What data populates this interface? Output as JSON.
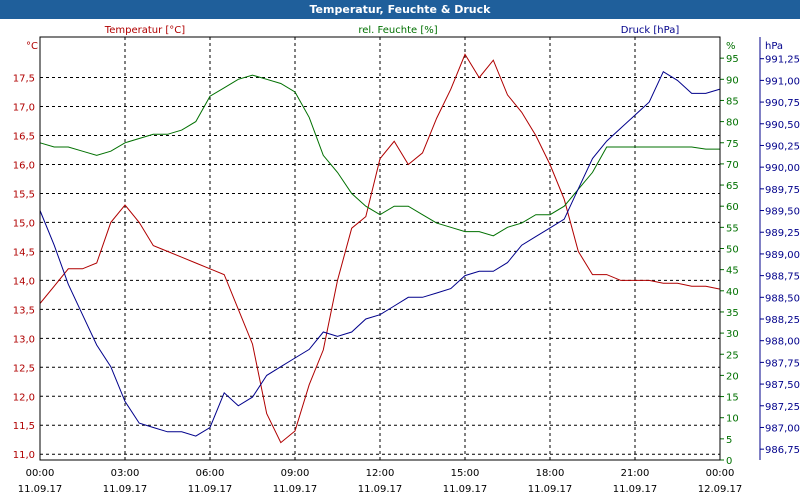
{
  "window": {
    "title": "Temperatur, Feuchte & Druck"
  },
  "chart_data": {
    "type": "line",
    "title": "Temperatur, Feuchte & Druck",
    "x_ticks": [
      {
        "time": "00:00",
        "date": "11.09.17"
      },
      {
        "time": "03:00",
        "date": "11.09.17"
      },
      {
        "time": "06:00",
        "date": "11.09.17"
      },
      {
        "time": "09:00",
        "date": "11.09.17"
      },
      {
        "time": "12:00",
        "date": "11.09.17"
      },
      {
        "time": "15:00",
        "date": "11.09.17"
      },
      {
        "time": "18:00",
        "date": "11.09.17"
      },
      {
        "time": "21:00",
        "date": "11.09.17"
      },
      {
        "time": "00:00",
        "date": "12.09.17"
      }
    ],
    "x_unit_hours": [
      0,
      24
    ],
    "grid": true,
    "axes": {
      "temperature": {
        "label": "Temperatur [°C]",
        "unit": "°C",
        "color": "#b00000",
        "ylim": [
          10.9,
          18.2
        ],
        "ticks": [
          "11,0",
          "11,5",
          "12,0",
          "12,5",
          "13,0",
          "13,5",
          "14,0",
          "14,5",
          "15,0",
          "15,5",
          "16,0",
          "16,5",
          "17,0",
          "17,5"
        ],
        "tick_values": [
          11.0,
          11.5,
          12.0,
          12.5,
          13.0,
          13.5,
          14.0,
          14.5,
          15.0,
          15.5,
          16.0,
          16.5,
          17.0,
          17.5
        ]
      },
      "humidity": {
        "label": "rel. Feuchte [%]",
        "unit": "%",
        "color": "#007000",
        "ylim": [
          0,
          100
        ],
        "ticks": [
          "0",
          "5",
          "10",
          "15",
          "20",
          "25",
          "30",
          "35",
          "40",
          "45",
          "50",
          "55",
          "60",
          "65",
          "70",
          "75",
          "80",
          "85",
          "90",
          "95"
        ],
        "tick_values": [
          0,
          5,
          10,
          15,
          20,
          25,
          30,
          35,
          40,
          45,
          50,
          55,
          60,
          65,
          70,
          75,
          80,
          85,
          90,
          95
        ]
      },
      "pressure": {
        "label": "Druck [hPa]",
        "unit": "hPa",
        "color": "#00008b",
        "ylim": [
          986.625,
          991.5
        ],
        "ticks": [
          "986,75",
          "987,00",
          "987,25",
          "987,50",
          "987,75",
          "988,00",
          "988,25",
          "988,50",
          "988,75",
          "989,00",
          "989,25",
          "989,50",
          "989,75",
          "990,00",
          "990,25",
          "990,50",
          "990,75",
          "991,00",
          "991,25"
        ],
        "tick_values": [
          986.75,
          987.0,
          987.25,
          987.5,
          987.75,
          988.0,
          988.25,
          988.5,
          988.75,
          989.0,
          989.25,
          989.5,
          989.75,
          990.0,
          990.25,
          990.5,
          990.75,
          991.0,
          991.25
        ]
      }
    },
    "series": [
      {
        "name": "Temperatur [°C]",
        "axis": "temperature",
        "color": "#b00000",
        "x": [
          0,
          0.5,
          1,
          1.5,
          2,
          2.5,
          3,
          3.5,
          4,
          4.5,
          5,
          5.5,
          6,
          6.5,
          7,
          7.5,
          8,
          8.5,
          9,
          9.5,
          10,
          10.5,
          11,
          11.5,
          12,
          12.5,
          13,
          13.5,
          14,
          14.5,
          15,
          15.5,
          16,
          16.5,
          17,
          17.5,
          18,
          18.5,
          19,
          19.5,
          20,
          20.5,
          21,
          21.5,
          22,
          22.5,
          23,
          23.5,
          24
        ],
        "values": [
          13.6,
          13.9,
          14.2,
          14.2,
          14.3,
          15.0,
          15.3,
          15.0,
          14.6,
          14.5,
          14.4,
          14.3,
          14.2,
          14.1,
          13.5,
          12.9,
          11.7,
          11.2,
          11.4,
          12.2,
          12.8,
          14.0,
          14.9,
          15.1,
          16.1,
          16.4,
          16.0,
          16.2,
          16.8,
          17.3,
          17.9,
          17.5,
          17.8,
          17.2,
          16.9,
          16.5,
          16.0,
          15.4,
          14.5,
          14.1,
          14.1,
          14.0,
          14.0,
          14.0,
          13.95,
          13.95,
          13.9,
          13.9,
          13.85
        ]
      },
      {
        "name": "rel. Feuchte [%]",
        "axis": "humidity",
        "color": "#007000",
        "x": [
          0,
          0.5,
          1,
          1.5,
          2,
          2.5,
          3,
          3.5,
          4,
          4.5,
          5,
          5.5,
          6,
          6.5,
          7,
          7.5,
          8,
          8.5,
          9,
          9.5,
          10,
          10.5,
          11,
          11.5,
          12,
          12.5,
          13,
          13.5,
          14,
          14.5,
          15,
          15.5,
          16,
          16.5,
          17,
          17.5,
          18,
          18.5,
          19,
          19.5,
          20,
          20.5,
          21,
          21.5,
          22,
          22.5,
          23,
          23.5,
          24
        ],
        "values": [
          75,
          74,
          74,
          73,
          72,
          73,
          75,
          76,
          77,
          77,
          78,
          80,
          86,
          88,
          90,
          91,
          90,
          89,
          87,
          81,
          72,
          68,
          63,
          60,
          58,
          60,
          60,
          58,
          56,
          55,
          54,
          54,
          53,
          55,
          56,
          58,
          58,
          60,
          64,
          68,
          74,
          74,
          74,
          74,
          74,
          74,
          74,
          73.5,
          73.5
        ]
      },
      {
        "name": "Druck [hPa]",
        "axis": "pressure",
        "color": "#00008b",
        "x": [
          0,
          0.5,
          1,
          1.5,
          2,
          2.5,
          3,
          3.5,
          4,
          4.5,
          5,
          5.5,
          6,
          6.5,
          7,
          7.5,
          8,
          8.5,
          9,
          9.5,
          10,
          10.5,
          11,
          11.5,
          12,
          12.5,
          13,
          13.5,
          14,
          14.5,
          15,
          15.5,
          16,
          16.5,
          17,
          17.5,
          18,
          18.5,
          19,
          19.5,
          20,
          20.5,
          21,
          21.5,
          22,
          22.5,
          23,
          23.5,
          24
        ],
        "values": [
          989.5,
          989.1,
          988.65,
          988.3,
          987.95,
          987.7,
          987.3,
          987.05,
          987.0,
          986.95,
          986.95,
          986.9,
          987.0,
          987.4,
          987.25,
          987.35,
          987.6,
          987.7,
          987.8,
          987.9,
          988.1,
          988.05,
          988.1,
          988.25,
          988.3,
          988.4,
          988.5,
          988.5,
          988.55,
          988.6,
          988.75,
          988.8,
          988.8,
          988.9,
          989.1,
          989.2,
          989.3,
          989.4,
          989.75,
          990.1,
          990.3,
          990.45,
          990.6,
          990.75,
          991.1,
          991.0,
          990.85,
          990.85,
          990.9
        ]
      }
    ]
  }
}
